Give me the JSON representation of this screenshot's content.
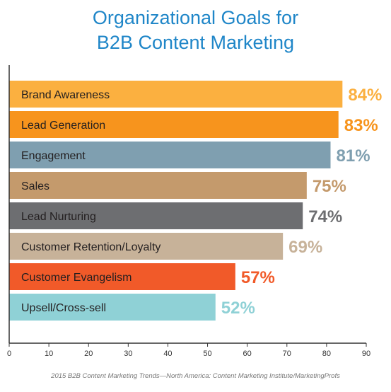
{
  "title_lines": [
    "Organizational Goals for",
    "B2B Content Marketing"
  ],
  "source": "2015 B2B Content Marketing Trends—North America: Content Marketing Institute/MarketingProfs",
  "chart_data": {
    "type": "bar",
    "orientation": "horizontal",
    "title": "Organizational Goals for B2B Content Marketing",
    "categories": [
      "Brand Awareness",
      "Lead Generation",
      "Engagement",
      "Sales",
      "Lead Nurturing",
      "Customer Retention/Loyalty",
      "Customer Evangelism",
      "Upsell/Cross-sell"
    ],
    "values": [
      84,
      83,
      81,
      75,
      74,
      69,
      57,
      52
    ],
    "value_labels": [
      "84%",
      "83%",
      "81%",
      "75%",
      "74%",
      "69%",
      "57%",
      "52%"
    ],
    "colors": [
      "#fbb040",
      "#f7941d",
      "#7f9fb0",
      "#c49a6c",
      "#6d6e71",
      "#c7b299",
      "#f15a29",
      "#8fd1d6"
    ],
    "xlim": [
      0,
      90
    ],
    "xticks": [
      0,
      10,
      20,
      30,
      40,
      50,
      60,
      70,
      80,
      90
    ],
    "grid": false,
    "legend": "none"
  }
}
